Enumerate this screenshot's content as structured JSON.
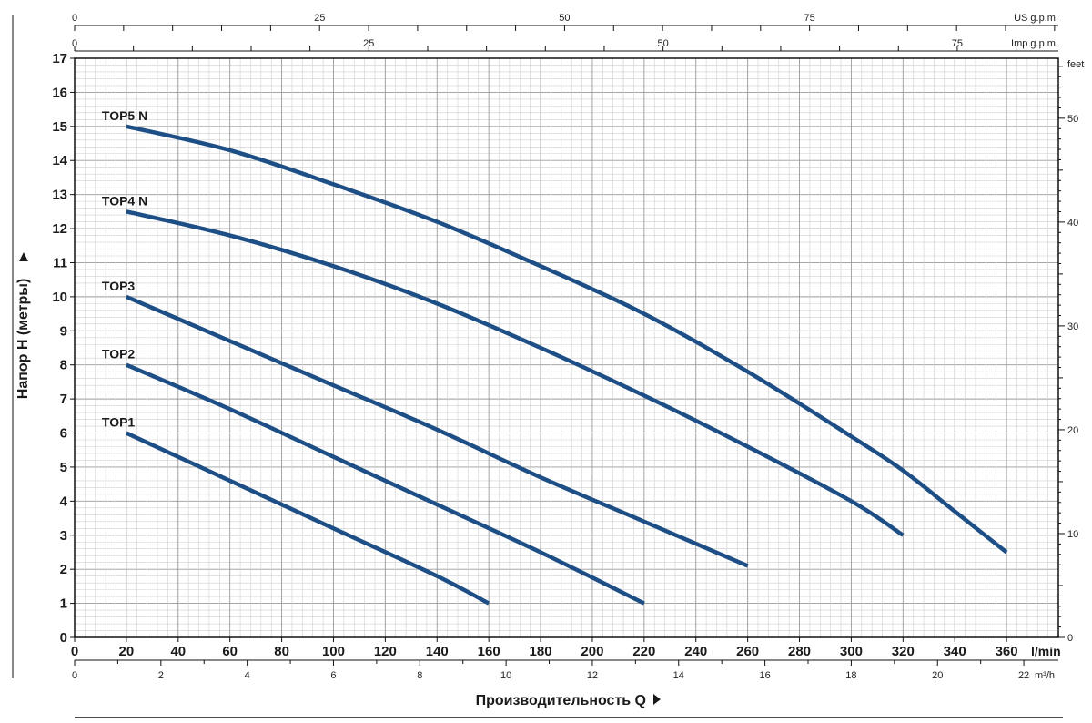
{
  "chart_data": {
    "type": "line",
    "xlabel": "Производительность Q",
    "ylabel": "Напор H (метры)",
    "x_unit": "l/min",
    "xlim": [
      0,
      380
    ],
    "ylim": [
      0,
      17
    ],
    "grid": true,
    "x_ticks": [
      0,
      20,
      40,
      60,
      80,
      100,
      120,
      140,
      160,
      180,
      200,
      220,
      240,
      260,
      280,
      300,
      320,
      340,
      360
    ],
    "y_ticks": [
      0,
      1,
      2,
      3,
      4,
      5,
      6,
      7,
      8,
      9,
      10,
      11,
      12,
      13,
      14,
      15,
      16,
      17
    ],
    "secondary_axes": {
      "us_gpm": {
        "label": "US g.p.m.",
        "ticks": [
          0,
          25,
          50,
          75
        ]
      },
      "imp_gpm": {
        "label": "Imp g.p.m.",
        "ticks": [
          0,
          25,
          50,
          75
        ]
      },
      "m3h": {
        "label": "m³/h",
        "ticks": [
          0,
          2,
          4,
          6,
          8,
          10,
          12,
          14,
          16,
          18,
          20,
          22
        ]
      },
      "feet": {
        "label": "feet",
        "ticks": [
          0,
          10,
          20,
          30,
          40,
          50
        ]
      }
    },
    "series": [
      {
        "name": "TOP1",
        "x": [
          20,
          60,
          100,
          140,
          160
        ],
        "y": [
          6.0,
          4.6,
          3.2,
          1.8,
          1.0
        ]
      },
      {
        "name": "TOP2",
        "x": [
          20,
          60,
          100,
          140,
          180,
          220
        ],
        "y": [
          8.0,
          6.7,
          5.3,
          3.9,
          2.5,
          1.0
        ]
      },
      {
        "name": "TOP3",
        "x": [
          20,
          60,
          100,
          140,
          180,
          220,
          260
        ],
        "y": [
          10.0,
          8.7,
          7.4,
          6.1,
          4.7,
          3.4,
          2.1
        ]
      },
      {
        "name": "TOP4 N",
        "x": [
          20,
          60,
          100,
          140,
          180,
          220,
          260,
          300,
          320
        ],
        "y": [
          12.5,
          11.8,
          10.9,
          9.8,
          8.5,
          7.1,
          5.6,
          4.0,
          3.0
        ]
      },
      {
        "name": "TOP5 N",
        "x": [
          20,
          60,
          100,
          140,
          180,
          220,
          260,
          300,
          320,
          340,
          360
        ],
        "y": [
          15.0,
          14.3,
          13.3,
          12.2,
          10.9,
          9.5,
          7.8,
          5.9,
          4.9,
          3.7,
          2.5
        ]
      }
    ],
    "line_color": "#1d4f86"
  }
}
